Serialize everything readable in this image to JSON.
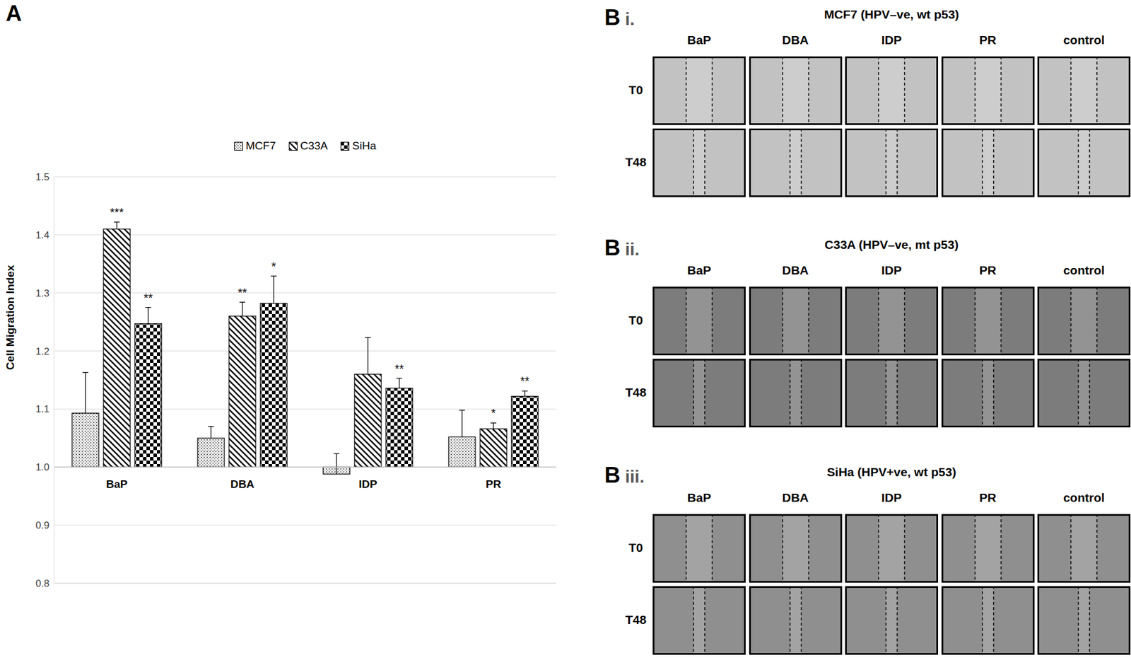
{
  "panel_label": "A",
  "chart_data": {
    "type": "bar",
    "y_label": "Cell Migration Index",
    "categories": [
      "BaP",
      "DBA",
      "IDP",
      "PR"
    ],
    "series": [
      {
        "name": "MCF7",
        "color": "#000000",
        "values": [
          1.093,
          1.05,
          0.988,
          1.052
        ],
        "errors": [
          0.07,
          0.02,
          0.035,
          0.046
        ],
        "annotations": [
          null,
          null,
          null,
          null
        ]
      },
      {
        "name": "C33A",
        "color": "#000000",
        "values": [
          1.41,
          1.26,
          1.16,
          1.066
        ],
        "errors": [
          0.012,
          0.024,
          0.063,
          0.01
        ],
        "annotations": [
          "***",
          "**",
          null,
          "*"
        ]
      },
      {
        "name": "SiHa",
        "color": "#000000",
        "values": [
          1.247,
          1.282,
          1.136,
          1.122
        ],
        "errors": [
          0.028,
          0.047,
          0.017,
          0.009
        ],
        "annotations": [
          "**",
          "*",
          "**",
          "**"
        ]
      }
    ],
    "baseline": 1,
    "ylim": [
      0.8,
      1.5
    ],
    "yticks": [
      0.8,
      0.9,
      {
        "value": 1,
        "label": "1.0"
      },
      1.1,
      1.2,
      1.3,
      1.4,
      1.5
    ],
    "grid": true,
    "legend": "top"
  },
  "image_panels": [
    {
      "label": "B",
      "sublabel": "i.",
      "title": "MCF7 (HPV–ve, wt p53)",
      "columns": [
        "BaP",
        "DBA",
        "IDP",
        "PR",
        "control"
      ],
      "rows": [
        "T0",
        "T48"
      ]
    },
    {
      "label": "B",
      "sublabel": "ii.",
      "title": "C33A (HPV–ve, mt p53)",
      "columns": [
        "BaP",
        "DBA",
        "IDP",
        "PR",
        "control"
      ],
      "rows": [
        "T0",
        "T48"
      ]
    },
    {
      "label": "B",
      "sublabel": "iii.",
      "title": "SiHa (HPV+ve, wt p53)",
      "columns": [
        "BaP",
        "DBA",
        "IDP",
        "PR",
        "control"
      ],
      "rows": [
        "T0",
        "T48"
      ]
    }
  ]
}
